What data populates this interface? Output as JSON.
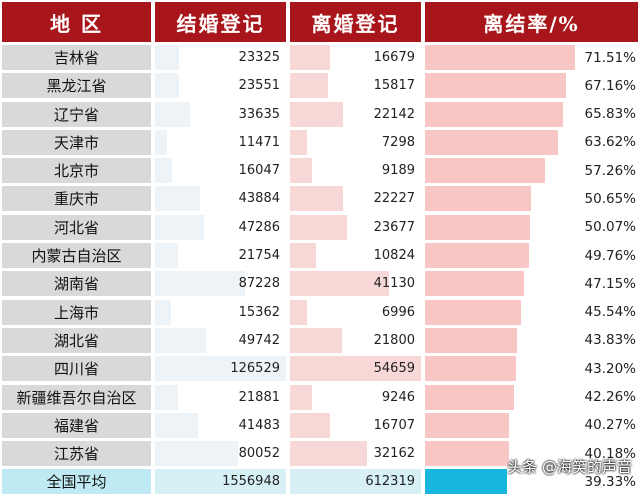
{
  "chart_data": {
    "type": "table",
    "columns": [
      "地 区",
      "结婚登记",
      "离婚登记",
      "离结率/%"
    ],
    "rows": [
      {
        "region": "吉林省",
        "marriage": "23325",
        "divorce": "16679",
        "rate": "71.51%",
        "rate_value": 71.51
      },
      {
        "region": "黑龙江省",
        "marriage": "23551",
        "divorce": "15817",
        "rate": "67.16%",
        "rate_value": 67.16
      },
      {
        "region": "辽宁省",
        "marriage": "33635",
        "divorce": "22142",
        "rate": "65.83%",
        "rate_value": 65.83
      },
      {
        "region": "天津市",
        "marriage": "11471",
        "divorce": "7298",
        "rate": "63.62%",
        "rate_value": 63.62
      },
      {
        "region": "北京市",
        "marriage": "16047",
        "divorce": "9189",
        "rate": "57.26%",
        "rate_value": 57.26
      },
      {
        "region": "重庆市",
        "marriage": "43884",
        "divorce": "22227",
        "rate": "50.65%",
        "rate_value": 50.65
      },
      {
        "region": "河北省",
        "marriage": "47286",
        "divorce": "23677",
        "rate": "50.07%",
        "rate_value": 50.07
      },
      {
        "region": "内蒙古自治区",
        "marriage": "21754",
        "divorce": "10824",
        "rate": "49.76%",
        "rate_value": 49.76
      },
      {
        "region": "湖南省",
        "marriage": "87228",
        "divorce": "41130",
        "rate": "47.15%",
        "rate_value": 47.15
      },
      {
        "region": "上海市",
        "marriage": "15362",
        "divorce": "6996",
        "rate": "45.54%",
        "rate_value": 45.54
      },
      {
        "region": "湖北省",
        "marriage": "49742",
        "divorce": "21800",
        "rate": "43.83%",
        "rate_value": 43.83
      },
      {
        "region": "四川省",
        "marriage": "126529",
        "divorce": "54659",
        "rate": "43.20%",
        "rate_value": 43.2
      },
      {
        "region": "新疆维吾尔自治区",
        "marriage": "21881",
        "divorce": "9246",
        "rate": "42.26%",
        "rate_value": 42.26
      },
      {
        "region": "福建省",
        "marriage": "41483",
        "divorce": "16707",
        "rate": "40.27%",
        "rate_value": 40.27
      },
      {
        "region": "江苏省",
        "marriage": "80052",
        "divorce": "32162",
        "rate": "40.18%",
        "rate_value": 40.18
      }
    ],
    "total": {
      "region": "全国平均",
      "marriage": "1556948",
      "divorce": "612319",
      "rate": "39.33%",
      "rate_value": 39.33
    },
    "colors": {
      "header": "#a8161b",
      "rate_bar": "#f9c6c6",
      "total_bar": "#16b6de"
    }
  },
  "watermark": "头条 @海笑的声音"
}
